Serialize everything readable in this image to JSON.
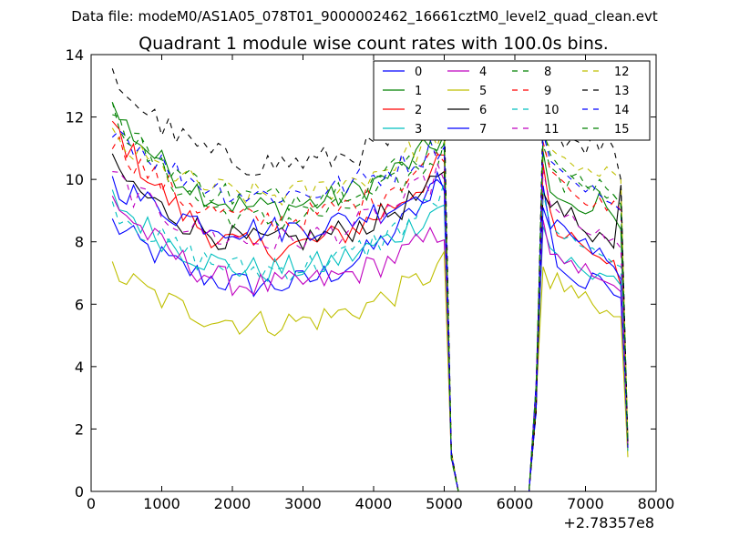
{
  "chart_data": {
    "type": "line",
    "suptitle": "Data file: modeM0/AS1A05_078T01_9000002462_16661cztM0_level2_quad_clean.evt",
    "title": "Quadrant 1 module wise count rates with 100.0s bins.",
    "xlabel": "",
    "ylabel": "",
    "xlim": [
      0,
      8000
    ],
    "ylim": [
      0,
      14
    ],
    "xticks": [
      "0",
      "1000",
      "2000",
      "3000",
      "4000",
      "5000",
      "6000",
      "7000",
      "8000"
    ],
    "yticks": [
      "0",
      "2",
      "4",
      "6",
      "8",
      "10",
      "12",
      "14"
    ],
    "x_offset_label": "+2.78357e8",
    "legend_position": "top-right",
    "legend_columns": 4,
    "gap_value": 0.0,
    "series_time_ranges": {
      "segment1": [
        300,
        5000
      ],
      "segment2": [
        6400,
        7600
      ],
      "dropout": [
        5100,
        6300
      ]
    },
    "series": [
      {
        "name": "0",
        "color": "#0000ff",
        "dash": "solid",
        "seg1_start": 8.6,
        "seg1_mid": 6.6,
        "seg1_end": 10.1,
        "seg2": [
          9.8,
          8.4,
          7.2,
          7.0,
          6.8,
          6.6,
          6.5,
          7.0,
          6.9,
          6.6,
          6.3,
          6.2,
          1.3
        ]
      },
      {
        "name": "1",
        "color": "#008000",
        "dash": "solid",
        "seg1_start": 12.3,
        "seg1_mid": 9.1,
        "seg1_end": 11.4,
        "seg2": [
          10.9,
          9.6,
          9.4,
          9.3,
          9.2,
          9.0,
          8.9,
          9.0,
          9.6,
          9.1,
          8.8,
          8.4,
          1.5
        ]
      },
      {
        "name": "2",
        "color": "#ff0000",
        "dash": "solid",
        "seg1_start": 11.8,
        "seg1_mid": 7.8,
        "seg1_end": 10.6,
        "seg2": [
          10.5,
          9.0,
          8.2,
          8.1,
          8.3,
          8.0,
          7.8,
          7.6,
          7.5,
          7.3,
          7.4,
          6.6,
          1.4
        ]
      },
      {
        "name": "3",
        "color": "#00bfbf",
        "dash": "solid",
        "seg1_start": 9.4,
        "seg1_mid": 7.1,
        "seg1_end": 9.3,
        "seg2": [
          8.5,
          7.8,
          7.6,
          7.3,
          7.5,
          7.2,
          7.0,
          6.8,
          7.0,
          6.9,
          6.9,
          6.6,
          1.3
        ]
      },
      {
        "name": "4",
        "color": "#bf00bf",
        "dash": "solid",
        "seg1_start": 9.4,
        "seg1_mid": 6.6,
        "seg1_end": 8.4,
        "seg2": [
          8.7,
          7.6,
          7.6,
          7.3,
          7.4,
          7.0,
          7.3,
          6.9,
          6.8,
          6.7,
          6.6,
          6.4,
          1.3
        ]
      },
      {
        "name": "5",
        "color": "#bfbf00",
        "dash": "solid",
        "seg1_start": 7.1,
        "seg1_mid": 5.4,
        "seg1_end": 7.3,
        "seg2": [
          7.2,
          6.5,
          7.0,
          6.4,
          6.6,
          6.2,
          6.4,
          6.0,
          5.7,
          5.8,
          5.6,
          5.6,
          1.1
        ]
      },
      {
        "name": "6",
        "color": "#000000",
        "dash": "solid",
        "seg1_start": 10.4,
        "seg1_mid": 8.0,
        "seg1_end": 10.0,
        "seg2": [
          9.6,
          9.1,
          9.3,
          8.8,
          9.1,
          8.5,
          8.3,
          8.0,
          8.3,
          8.1,
          7.8,
          9.8,
          1.4
        ]
      },
      {
        "name": "7",
        "color": "#0000ff",
        "dash": "solid",
        "seg1_start": 9.9,
        "seg1_mid": 8.4,
        "seg1_end": 10.0,
        "seg2": [
          9.1,
          8.4,
          8.7,
          8.5,
          8.2,
          8.0,
          8.1,
          7.6,
          7.8,
          7.4,
          7.2,
          6.8,
          1.4
        ]
      },
      {
        "name": "8",
        "color": "#008000",
        "dash": "dashed",
        "seg1_start": 12.2,
        "seg1_mid": 8.7,
        "seg1_end": 10.9,
        "seg2": [
          11.1,
          10.4,
          10.2,
          9.6,
          10.1,
          10.2,
          9.8,
          9.6,
          10.0,
          9.7,
          9.5,
          9.2,
          1.5
        ]
      },
      {
        "name": "9",
        "color": "#ff0000",
        "dash": "dashed",
        "seg1_start": 11.3,
        "seg1_mid": 8.7,
        "seg1_end": 11.0,
        "seg2": [
          11.2,
          10.3,
          10.1,
          9.9,
          9.6,
          9.4,
          9.2,
          9.1,
          9.4,
          9.0,
          9.3,
          9.0,
          1.5
        ]
      },
      {
        "name": "10",
        "color": "#00bfbf",
        "dash": "dashed",
        "seg1_start": 9.2,
        "seg1_mid": 7.1,
        "seg1_end": 9.6,
        "seg2": [
          9.6,
          8.5,
          8.3,
          8.1,
          8.2,
          7.9,
          7.8,
          7.8,
          7.6,
          7.5,
          7.3,
          7.2,
          1.3
        ]
      },
      {
        "name": "11",
        "color": "#bf00bf",
        "dash": "dashed",
        "seg1_start": 10.1,
        "seg1_mid": 8.0,
        "seg1_end": 10.3,
        "seg2": [
          10.3,
          9.2,
          9.0,
          8.8,
          8.9,
          8.5,
          8.3,
          8.2,
          8.4,
          8.0,
          8.1,
          7.8,
          1.4
        ]
      },
      {
        "name": "12",
        "color": "#bfbf00",
        "dash": "dashed",
        "seg1_start": 11.3,
        "seg1_mid": 9.5,
        "seg1_end": 11.6,
        "seg2": [
          11.4,
          11.0,
          10.8,
          10.7,
          10.5,
          10.3,
          10.4,
          10.2,
          10.1,
          10.4,
          10.2,
          10.0,
          1.6
        ]
      },
      {
        "name": "13",
        "color": "#000000",
        "dash": "dashed",
        "seg1_start": 13.3,
        "seg1_mid": 10.5,
        "seg1_end": 12.0,
        "seg2": [
          12.3,
          11.6,
          11.5,
          11.0,
          11.3,
          11.2,
          10.8,
          11.5,
          10.9,
          11.4,
          11.0,
          10.0,
          1.6
        ]
      },
      {
        "name": "14",
        "color": "#0000ff",
        "dash": "dashed",
        "seg1_start": 11.8,
        "seg1_mid": 9.5,
        "seg1_end": 11.2,
        "seg2": [
          11.5,
          10.6,
          10.4,
          10.2,
          10.0,
          9.8,
          9.6,
          9.8,
          9.5,
          9.3,
          9.2,
          9.0,
          1.5
        ]
      },
      {
        "name": "15",
        "color": "#008000",
        "dash": "dashed",
        "seg1_start": 12.0,
        "seg1_mid": 9.4,
        "seg1_end": 11.3,
        "seg2": [
          11.6,
          10.8,
          10.5,
          10.3,
          10.1,
          9.9,
          9.7,
          9.8,
          9.6,
          9.4,
          9.5,
          9.2,
          1.5
        ]
      }
    ]
  }
}
